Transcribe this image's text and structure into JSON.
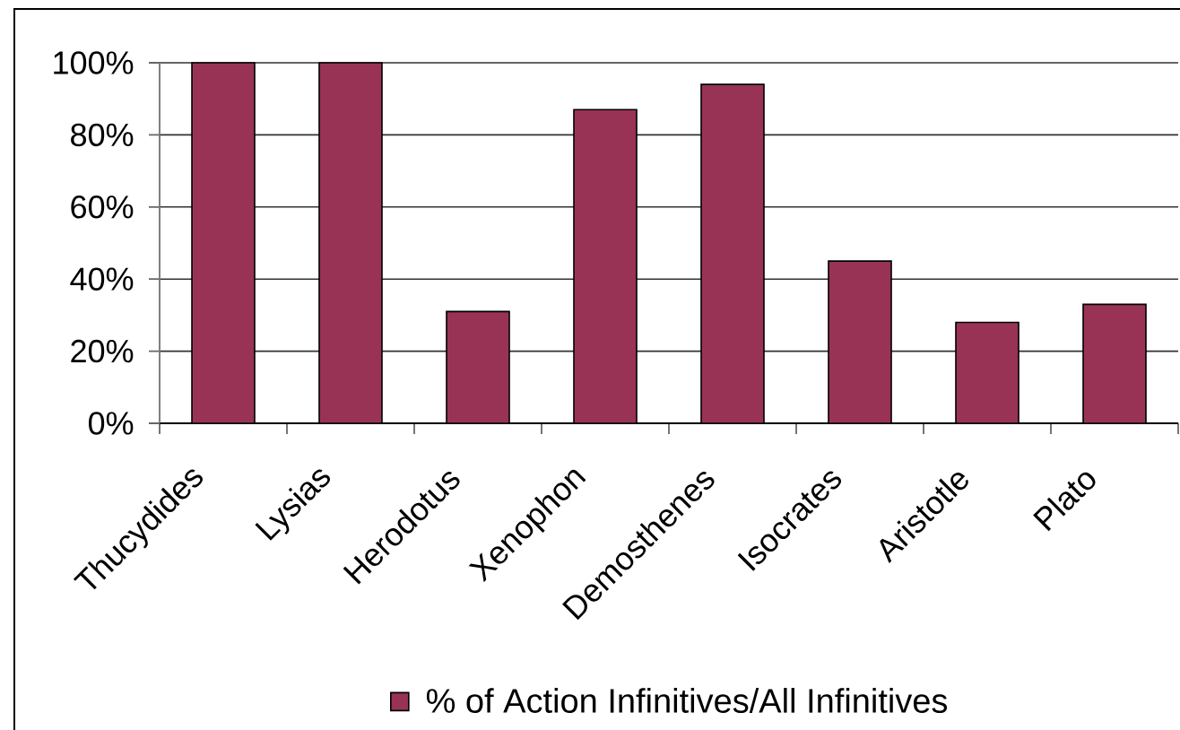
{
  "chart_data": {
    "type": "bar",
    "categories": [
      "Thucydides",
      "Lysias",
      "Herodotus",
      "Xenophon",
      "Demosthenes",
      "Isocrates",
      "Aristotle",
      "Plato"
    ],
    "series": [
      {
        "name": "% of Action Infinitives/All Infinitives",
        "color": "#993355",
        "values": [
          100,
          100,
          31,
          87,
          94,
          45,
          28,
          33
        ]
      }
    ],
    "ylim": [
      0,
      100
    ],
    "yticks": [
      {
        "value": 0,
        "label": "0%"
      },
      {
        "value": 20,
        "label": "20%"
      },
      {
        "value": 40,
        "label": "40%"
      },
      {
        "value": 60,
        "label": "60%"
      },
      {
        "value": 80,
        "label": "80%"
      },
      {
        "value": 100,
        "label": "100%"
      }
    ],
    "grid": "y",
    "legend": "bottom"
  }
}
